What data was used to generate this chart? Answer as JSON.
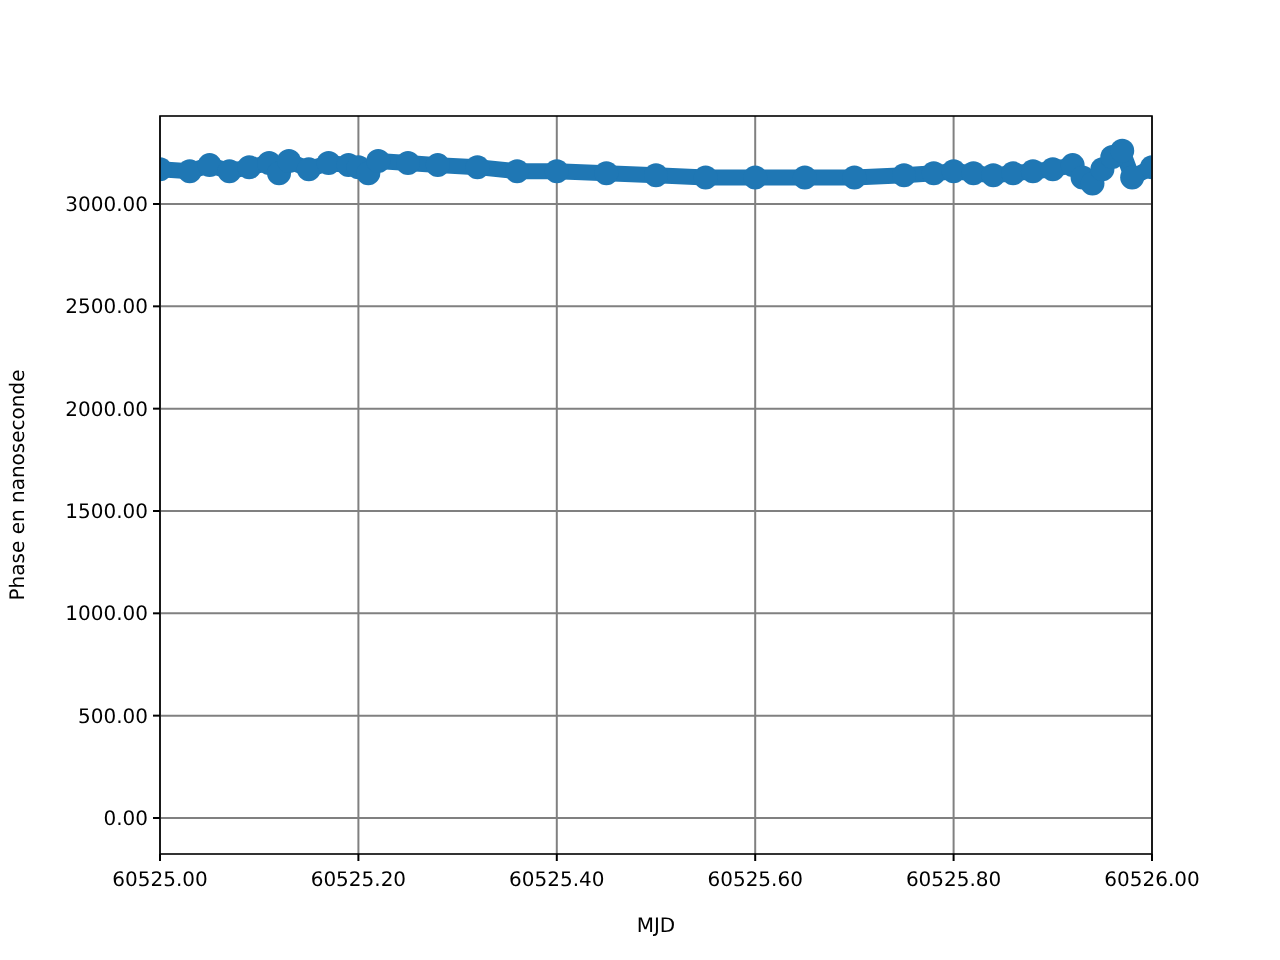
{
  "chart_data": {
    "type": "line",
    "xlabel": "MJD",
    "ylabel": "Phase en nanoseconde",
    "marker": "circle",
    "grid": true,
    "xlim": [
      60525.0,
      60526.0
    ],
    "xticks": [
      {
        "value": 60525.0,
        "label": "60525.00"
      },
      {
        "value": 60525.2,
        "label": "60525.20"
      },
      {
        "value": 60525.4,
        "label": "60525.40"
      },
      {
        "value": 60525.6,
        "label": "60525.60"
      },
      {
        "value": 60525.8,
        "label": "60525.80"
      },
      {
        "value": 60526.0,
        "label": "60526.00"
      }
    ],
    "ylim": [
      -176,
      3430
    ],
    "yticks": [
      {
        "value": 0,
        "label": "0.00"
      },
      {
        "value": 500,
        "label": "500.00"
      },
      {
        "value": 1000,
        "label": "1000.00"
      },
      {
        "value": 1500,
        "label": "1500.00"
      },
      {
        "value": 2000,
        "label": "2000.00"
      },
      {
        "value": 2500,
        "label": "2500.00"
      },
      {
        "value": 3000,
        "label": "3000.00"
      }
    ],
    "series": [
      {
        "color": "#1f77b4",
        "x": [
          60525.0,
          60525.03,
          60525.05,
          60525.07,
          60525.09,
          60525.11,
          60525.12,
          60525.13,
          60525.15,
          60525.17,
          60525.19,
          60525.2,
          60525.21,
          60525.22,
          60525.25,
          60525.28,
          60525.32,
          60525.36,
          60525.4,
          60525.45,
          60525.5,
          60525.55,
          60525.6,
          60525.65,
          60525.7,
          60525.75,
          60525.78,
          60525.8,
          60525.82,
          60525.84,
          60525.86,
          60525.88,
          60525.9,
          60525.92,
          60525.93,
          60525.94,
          60525.95,
          60525.96,
          60525.97,
          60525.98,
          60526.0
        ],
        "values": [
          3170,
          3160,
          3190,
          3160,
          3180,
          3200,
          3150,
          3210,
          3170,
          3200,
          3190,
          3180,
          3150,
          3210,
          3200,
          3190,
          3180,
          3160,
          3160,
          3150,
          3140,
          3130,
          3130,
          3130,
          3130,
          3140,
          3150,
          3160,
          3150,
          3140,
          3150,
          3160,
          3170,
          3190,
          3130,
          3100,
          3170,
          3230,
          3260,
          3130,
          3180
        ]
      }
    ]
  }
}
